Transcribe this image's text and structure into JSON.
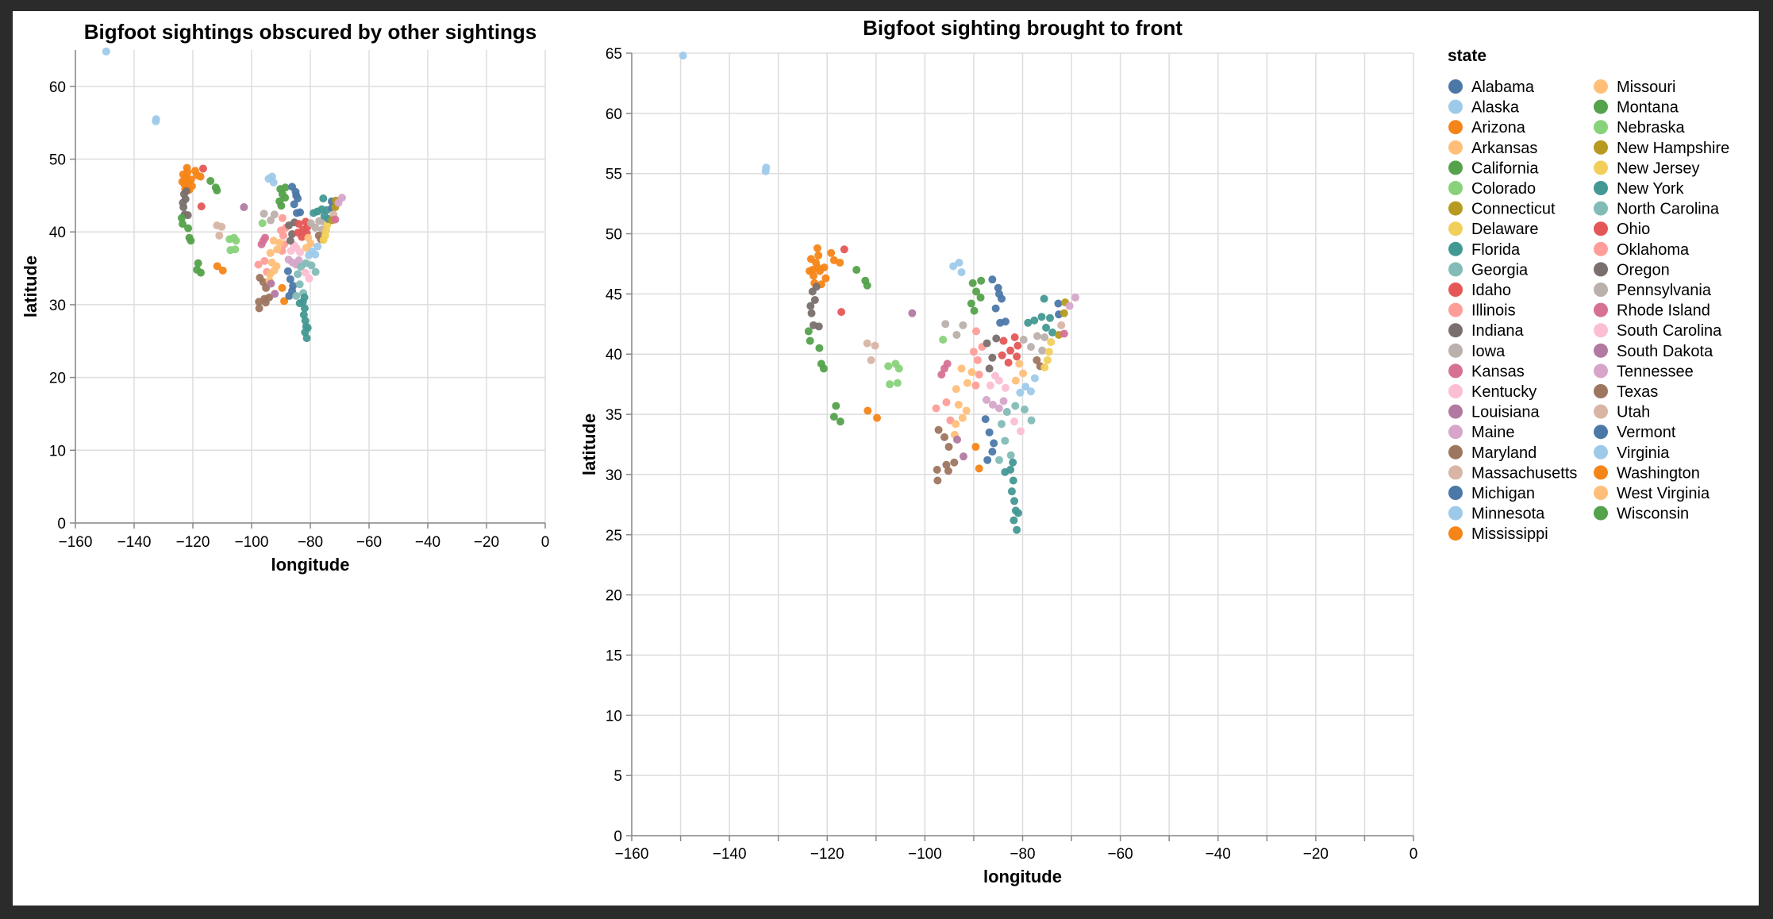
{
  "chart_data": [
    {
      "type": "scatter",
      "title": "Bigfoot sightings obscured by other sightings",
      "xlabel": "longitude",
      "ylabel": "latitude",
      "xlim": [
        -160,
        0
      ],
      "ylim": [
        0,
        65
      ],
      "grid": true,
      "x_ticks": [
        -160,
        -140,
        -120,
        -100,
        -80,
        -60,
        -40,
        -20,
        0
      ],
      "x_tick_labels": [
        "−160",
        "−140",
        "−120",
        "−100",
        "−80",
        "−60",
        "−40",
        "−20",
        "0"
      ],
      "y_ticks": [
        0,
        10,
        20,
        30,
        40,
        50,
        60
      ],
      "y_tick_labels": [
        "0",
        "10",
        "20",
        "30",
        "40",
        "50",
        "60"
      ],
      "legend": "none"
    },
    {
      "type": "scatter",
      "title": "Bigfoot sighting brought to front",
      "xlabel": "longitude",
      "ylabel": "latitude",
      "xlim": [
        -160,
        0
      ],
      "ylim": [
        0,
        65
      ],
      "grid": true,
      "x_ticks": [
        -160,
        -140,
        -120,
        -100,
        -80,
        -60,
        -40,
        -20,
        0
      ],
      "x_tick_labels": [
        "−160",
        "−140",
        "−120",
        "−100",
        "−80",
        "−60",
        "−40",
        "−20",
        "0"
      ],
      "y_ticks": [
        0,
        5,
        10,
        15,
        20,
        25,
        30,
        35,
        40,
        45,
        50,
        55,
        60,
        65
      ],
      "y_tick_labels": [
        "0",
        "5",
        "10",
        "15",
        "20",
        "25",
        "30",
        "35",
        "40",
        "45",
        "50",
        "55",
        "60",
        "65"
      ],
      "legend": "right"
    }
  ],
  "legend": {
    "title": "state",
    "entries": [
      {
        "name": "Alabama",
        "color": "#4c78a8"
      },
      {
        "name": "Alaska",
        "color": "#9ecae9"
      },
      {
        "name": "Arizona",
        "color": "#f58518"
      },
      {
        "name": "Arkansas",
        "color": "#ffbf79"
      },
      {
        "name": "California",
        "color": "#54a24b"
      },
      {
        "name": "Colorado",
        "color": "#88d27a"
      },
      {
        "name": "Connecticut",
        "color": "#b79a20"
      },
      {
        "name": "Delaware",
        "color": "#f2cf5b"
      },
      {
        "name": "Florida",
        "color": "#439894"
      },
      {
        "name": "Georgia",
        "color": "#83bcb6"
      },
      {
        "name": "Idaho",
        "color": "#e45756"
      },
      {
        "name": "Illinois",
        "color": "#ff9d98"
      },
      {
        "name": "Indiana",
        "color": "#79706e"
      },
      {
        "name": "Iowa",
        "color": "#bab0ac"
      },
      {
        "name": "Kansas",
        "color": "#d67195"
      },
      {
        "name": "Kentucky",
        "color": "#fcbfd2"
      },
      {
        "name": "Louisiana",
        "color": "#b279a2"
      },
      {
        "name": "Maine",
        "color": "#d6a5c9"
      },
      {
        "name": "Maryland",
        "color": "#9e765f"
      },
      {
        "name": "Massachusetts",
        "color": "#d8b5a5"
      },
      {
        "name": "Michigan",
        "color": "#4c78a8"
      },
      {
        "name": "Minnesota",
        "color": "#9ecae9"
      },
      {
        "name": "Mississippi",
        "color": "#f58518"
      },
      {
        "name": "Missouri",
        "color": "#ffbf79"
      },
      {
        "name": "Montana",
        "color": "#54a24b"
      },
      {
        "name": "Nebraska",
        "color": "#88d27a"
      },
      {
        "name": "New Hampshire",
        "color": "#b79a20"
      },
      {
        "name": "New Jersey",
        "color": "#f2cf5b"
      },
      {
        "name": "New York",
        "color": "#439894"
      },
      {
        "name": "North Carolina",
        "color": "#83bcb6"
      },
      {
        "name": "Ohio",
        "color": "#e45756"
      },
      {
        "name": "Oklahoma",
        "color": "#ff9d98"
      },
      {
        "name": "Oregon",
        "color": "#79706e"
      },
      {
        "name": "Pennsylvania",
        "color": "#bab0ac"
      },
      {
        "name": "Rhode Island",
        "color": "#d67195"
      },
      {
        "name": "South Carolina",
        "color": "#fcbfd2"
      },
      {
        "name": "South Dakota",
        "color": "#b279a2"
      },
      {
        "name": "Tennessee",
        "color": "#d6a5c9"
      },
      {
        "name": "Texas",
        "color": "#9e765f"
      },
      {
        "name": "Utah",
        "color": "#d8b5a5"
      },
      {
        "name": "Vermont",
        "color": "#4c78a8"
      },
      {
        "name": "Virginia",
        "color": "#9ecae9"
      },
      {
        "name": "Washington",
        "color": "#f58518"
      },
      {
        "name": "West Virginia",
        "color": "#ffbf79"
      },
      {
        "name": "Wisconsin",
        "color": "#54a24b"
      }
    ]
  },
  "points": [
    {
      "state": "Alaska",
      "lon": -149.5,
      "lat": 64.8
    },
    {
      "state": "Alaska",
      "lon": -132.5,
      "lat": 55.5
    },
    {
      "state": "Alaska",
      "lon": -132.6,
      "lat": 55.2
    },
    {
      "state": "Washington",
      "lon": -122.3,
      "lat": 47.6
    },
    {
      "state": "Washington",
      "lon": -123.0,
      "lat": 47.0
    },
    {
      "state": "Washington",
      "lon": -121.8,
      "lat": 48.2
    },
    {
      "state": "Washington",
      "lon": -122.8,
      "lat": 46.5
    },
    {
      "state": "Washington",
      "lon": -121.5,
      "lat": 46.9
    },
    {
      "state": "Washington",
      "lon": -122.0,
      "lat": 48.8
    },
    {
      "state": "Washington",
      "lon": -120.6,
      "lat": 47.2
    },
    {
      "state": "Washington",
      "lon": -123.3,
      "lat": 47.9
    },
    {
      "state": "Washington",
      "lon": -122.6,
      "lat": 45.9
    },
    {
      "state": "Washington",
      "lon": -121.2,
      "lat": 45.8
    },
    {
      "state": "Washington",
      "lon": -119.2,
      "lat": 48.4
    },
    {
      "state": "Washington",
      "lon": -118.6,
      "lat": 47.8
    },
    {
      "state": "Washington",
      "lon": -117.4,
      "lat": 47.6
    },
    {
      "state": "Washington",
      "lon": -120.3,
      "lat": 46.3
    },
    {
      "state": "Washington",
      "lon": -122.0,
      "lat": 47.2
    },
    {
      "state": "Washington",
      "lon": -123.6,
      "lat": 46.9
    },
    {
      "state": "Oregon",
      "lon": -123.0,
      "lat": 45.2
    },
    {
      "state": "Oregon",
      "lon": -122.5,
      "lat": 44.5
    },
    {
      "state": "Oregon",
      "lon": -123.2,
      "lat": 43.4
    },
    {
      "state": "Oregon",
      "lon": -122.8,
      "lat": 42.4
    },
    {
      "state": "Oregon",
      "lon": -121.7,
      "lat": 42.3
    },
    {
      "state": "Oregon",
      "lon": -122.2,
      "lat": 45.6
    },
    {
      "state": "Oregon",
      "lon": -123.4,
      "lat": 44.0
    },
    {
      "state": "Idaho",
      "lon": -116.5,
      "lat": 48.7
    },
    {
      "state": "Idaho",
      "lon": -117.1,
      "lat": 43.5
    },
    {
      "state": "Montana",
      "lon": -114.0,
      "lat": 47.0
    },
    {
      "state": "Montana",
      "lon": -112.2,
      "lat": 46.1
    },
    {
      "state": "Montana",
      "lon": -111.8,
      "lat": 45.7
    },
    {
      "state": "California",
      "lon": -123.8,
      "lat": 41.9
    },
    {
      "state": "California",
      "lon": -123.5,
      "lat": 41.1
    },
    {
      "state": "California",
      "lon": -121.6,
      "lat": 40.5
    },
    {
      "state": "California",
      "lon": -121.2,
      "lat": 39.2
    },
    {
      "state": "California",
      "lon": -120.7,
      "lat": 38.8
    },
    {
      "state": "California",
      "lon": -118.2,
      "lat": 35.7
    },
    {
      "state": "California",
      "lon": -118.6,
      "lat": 34.8
    },
    {
      "state": "California",
      "lon": -117.3,
      "lat": 34.4
    },
    {
      "state": "Utah",
      "lon": -111.8,
      "lat": 40.9
    },
    {
      "state": "Utah",
      "lon": -110.2,
      "lat": 40.7
    },
    {
      "state": "Utah",
      "lon": -111.0,
      "lat": 39.5
    },
    {
      "state": "Colorado",
      "lon": -107.5,
      "lat": 39.0
    },
    {
      "state": "Colorado",
      "lon": -106.0,
      "lat": 39.2
    },
    {
      "state": "Colorado",
      "lon": -105.3,
      "lat": 38.8
    },
    {
      "state": "Colorado",
      "lon": -107.2,
      "lat": 37.5
    },
    {
      "state": "Colorado",
      "lon": -105.6,
      "lat": 37.6
    },
    {
      "state": "South Dakota",
      "lon": -102.6,
      "lat": 43.4
    },
    {
      "state": "Arizona",
      "lon": -111.7,
      "lat": 35.3
    },
    {
      "state": "Arizona",
      "lon": -109.8,
      "lat": 34.7
    },
    {
      "state": "Texas",
      "lon": -97.2,
      "lat": 33.7
    },
    {
      "state": "Texas",
      "lon": -96.0,
      "lat": 33.1
    },
    {
      "state": "Texas",
      "lon": -95.1,
      "lat": 32.3
    },
    {
      "state": "Texas",
      "lon": -97.5,
      "lat": 30.4
    },
    {
      "state": "Texas",
      "lon": -95.6,
      "lat": 30.8
    },
    {
      "state": "Texas",
      "lon": -94.0,
      "lat": 31.0
    },
    {
      "state": "Texas",
      "lon": -97.4,
      "lat": 29.5
    },
    {
      "state": "Texas",
      "lon": -95.2,
      "lat": 30.3
    },
    {
      "state": "Oklahoma",
      "lon": -97.7,
      "lat": 35.5
    },
    {
      "state": "Oklahoma",
      "lon": -95.6,
      "lat": 36.0
    },
    {
      "state": "Oklahoma",
      "lon": -94.8,
      "lat": 34.5
    },
    {
      "state": "Kansas",
      "lon": -96.0,
      "lat": 38.8
    },
    {
      "state": "Kansas",
      "lon": -95.4,
      "lat": 39.2
    },
    {
      "state": "Kansas",
      "lon": -96.6,
      "lat": 38.3
    },
    {
      "state": "Nebraska",
      "lon": -96.3,
      "lat": 41.2
    },
    {
      "state": "Iowa",
      "lon": -95.8,
      "lat": 42.5
    },
    {
      "state": "Iowa",
      "lon": -93.5,
      "lat": 41.6
    },
    {
      "state": "Iowa",
      "lon": -92.2,
      "lat": 42.4
    },
    {
      "state": "Minnesota",
      "lon": -94.2,
      "lat": 47.3
    },
    {
      "state": "Minnesota",
      "lon": -93.0,
      "lat": 47.6
    },
    {
      "state": "Minnesota",
      "lon": -92.5,
      "lat": 46.8
    },
    {
      "state": "Wisconsin",
      "lon": -90.2,
      "lat": 45.9
    },
    {
      "state": "Wisconsin",
      "lon": -89.5,
      "lat": 45.2
    },
    {
      "state": "Wisconsin",
      "lon": -88.6,
      "lat": 44.7
    },
    {
      "state": "Wisconsin",
      "lon": -90.5,
      "lat": 44.2
    },
    {
      "state": "Wisconsin",
      "lon": -89.9,
      "lat": 43.6
    },
    {
      "state": "Wisconsin",
      "lon": -88.5,
      "lat": 46.1
    },
    {
      "state": "Michigan",
      "lon": -86.2,
      "lat": 46.2
    },
    {
      "state": "Michigan",
      "lon": -85.0,
      "lat": 45.5
    },
    {
      "state": "Michigan",
      "lon": -84.3,
      "lat": 44.6
    },
    {
      "state": "Michigan",
      "lon": -85.5,
      "lat": 43.8
    },
    {
      "state": "Michigan",
      "lon": -84.6,
      "lat": 42.6
    },
    {
      "state": "Michigan",
      "lon": -83.5,
      "lat": 42.7
    },
    {
      "state": "Michigan",
      "lon": -84.8,
      "lat": 45.0
    },
    {
      "state": "Illinois",
      "lon": -89.5,
      "lat": 41.9
    },
    {
      "state": "Illinois",
      "lon": -88.3,
      "lat": 40.6
    },
    {
      "state": "Illinois",
      "lon": -89.2,
      "lat": 39.5
    },
    {
      "state": "Illinois",
      "lon": -88.9,
      "lat": 38.3
    },
    {
      "state": "Illinois",
      "lon": -89.6,
      "lat": 37.4
    },
    {
      "state": "Illinois",
      "lon": -90.0,
      "lat": 40.2
    },
    {
      "state": "Missouri",
      "lon": -92.5,
      "lat": 38.8
    },
    {
      "state": "Missouri",
      "lon": -91.3,
      "lat": 37.6
    },
    {
      "state": "Missouri",
      "lon": -93.6,
      "lat": 37.1
    },
    {
      "state": "Missouri",
      "lon": -90.4,
      "lat": 38.5
    },
    {
      "state": "Arkansas",
      "lon": -93.1,
      "lat": 35.8
    },
    {
      "state": "Arkansas",
      "lon": -92.3,
      "lat": 34.7
    },
    {
      "state": "Arkansas",
      "lon": -93.7,
      "lat": 34.2
    },
    {
      "state": "Arkansas",
      "lon": -91.5,
      "lat": 35.3
    },
    {
      "state": "Arkansas",
      "lon": -93.9,
      "lat": 33.3
    },
    {
      "state": "Louisiana",
      "lon": -93.4,
      "lat": 32.9
    },
    {
      "state": "Louisiana",
      "lon": -92.1,
      "lat": 31.5
    },
    {
      "state": "Mississippi",
      "lon": -89.6,
      "lat": 32.3
    },
    {
      "state": "Mississippi",
      "lon": -88.9,
      "lat": 30.5
    },
    {
      "state": "Alabama",
      "lon": -87.6,
      "lat": 34.6
    },
    {
      "state": "Alabama",
      "lon": -86.8,
      "lat": 33.5
    },
    {
      "state": "Alabama",
      "lon": -85.9,
      "lat": 32.6
    },
    {
      "state": "Alabama",
      "lon": -87.2,
      "lat": 31.2
    },
    {
      "state": "Alabama",
      "lon": -86.2,
      "lat": 31.9
    },
    {
      "state": "Tennessee",
      "lon": -87.4,
      "lat": 36.2
    },
    {
      "state": "Tennessee",
      "lon": -86.1,
      "lat": 35.8
    },
    {
      "state": "Tennessee",
      "lon": -84.8,
      "lat": 35.5
    },
    {
      "state": "Tennessee",
      "lon": -83.9,
      "lat": 36.1
    },
    {
      "state": "Kentucky",
      "lon": -86.6,
      "lat": 37.4
    },
    {
      "state": "Kentucky",
      "lon": -84.8,
      "lat": 37.8
    },
    {
      "state": "Kentucky",
      "lon": -83.5,
      "lat": 37.2
    },
    {
      "state": "Kentucky",
      "lon": -85.6,
      "lat": 38.2
    },
    {
      "state": "Indiana",
      "lon": -87.3,
      "lat": 40.9
    },
    {
      "state": "Indiana",
      "lon": -86.2,
      "lat": 39.7
    },
    {
      "state": "Indiana",
      "lon": -85.4,
      "lat": 41.3
    },
    {
      "state": "Indiana",
      "lon": -86.8,
      "lat": 38.8
    },
    {
      "state": "Ohio",
      "lon": -83.9,
      "lat": 41.1
    },
    {
      "state": "Ohio",
      "lon": -82.5,
      "lat": 40.3
    },
    {
      "state": "Ohio",
      "lon": -81.6,
      "lat": 41.4
    },
    {
      "state": "Ohio",
      "lon": -81.2,
      "lat": 39.8
    },
    {
      "state": "Ohio",
      "lon": -82.9,
      "lat": 39.3
    },
    {
      "state": "Ohio",
      "lon": -84.2,
      "lat": 39.9
    },
    {
      "state": "Ohio",
      "lon": -81.0,
      "lat": 40.7
    },
    {
      "state": "West Virginia",
      "lon": -80.7,
      "lat": 39.2
    },
    {
      "state": "West Virginia",
      "lon": -79.9,
      "lat": 38.4
    },
    {
      "state": "West Virginia",
      "lon": -81.4,
      "lat": 37.8
    },
    {
      "state": "Pennsylvania",
      "lon": -79.8,
      "lat": 41.2
    },
    {
      "state": "Pennsylvania",
      "lon": -78.3,
      "lat": 40.6
    },
    {
      "state": "Pennsylvania",
      "lon": -77.0,
      "lat": 41.5
    },
    {
      "state": "Pennsylvania",
      "lon": -76.0,
      "lat": 40.3
    },
    {
      "state": "Pennsylvania",
      "lon": -75.5,
      "lat": 41.4
    },
    {
      "state": "Virginia",
      "lon": -79.4,
      "lat": 37.3
    },
    {
      "state": "Virginia",
      "lon": -77.5,
      "lat": 38.0
    },
    {
      "state": "Virginia",
      "lon": -78.3,
      "lat": 36.9
    },
    {
      "state": "Virginia",
      "lon": -80.5,
      "lat": 36.8
    },
    {
      "state": "North Carolina",
      "lon": -81.5,
      "lat": 35.7
    },
    {
      "state": "North Carolina",
      "lon": -79.6,
      "lat": 35.4
    },
    {
      "state": "North Carolina",
      "lon": -78.2,
      "lat": 34.5
    },
    {
      "state": "North Carolina",
      "lon": -83.2,
      "lat": 35.2
    },
    {
      "state": "South Carolina",
      "lon": -81.7,
      "lat": 34.4
    },
    {
      "state": "South Carolina",
      "lon": -80.4,
      "lat": 33.6
    },
    {
      "state": "Georgia",
      "lon": -84.3,
      "lat": 34.2
    },
    {
      "state": "Georgia",
      "lon": -83.6,
      "lat": 32.8
    },
    {
      "state": "Georgia",
      "lon": -82.4,
      "lat": 31.6
    },
    {
      "state": "Georgia",
      "lon": -84.8,
      "lat": 31.2
    },
    {
      "state": "Florida",
      "lon": -82.5,
      "lat": 30.4
    },
    {
      "state": "Florida",
      "lon": -81.9,
      "lat": 29.5
    },
    {
      "state": "Florida",
      "lon": -82.2,
      "lat": 28.6
    },
    {
      "state": "Florida",
      "lon": -81.7,
      "lat": 27.8
    },
    {
      "state": "Florida",
      "lon": -81.4,
      "lat": 27.0
    },
    {
      "state": "Florida",
      "lon": -81.8,
      "lat": 26.2
    },
    {
      "state": "Florida",
      "lon": -81.2,
      "lat": 25.4
    },
    {
      "state": "Florida",
      "lon": -83.6,
      "lat": 30.2
    },
    {
      "state": "Florida",
      "lon": -80.9,
      "lat": 26.8
    },
    {
      "state": "Florida",
      "lon": -82.0,
      "lat": 31.0
    },
    {
      "state": "Maryland",
      "lon": -77.1,
      "lat": 39.5
    },
    {
      "state": "Maryland",
      "lon": -76.4,
      "lat": 39.0
    },
    {
      "state": "Delaware",
      "lon": -75.5,
      "lat": 38.9
    },
    {
      "state": "New Jersey",
      "lon": -74.6,
      "lat": 40.2
    },
    {
      "state": "New Jersey",
      "lon": -74.2,
      "lat": 41.0
    },
    {
      "state": "New Jersey",
      "lon": -74.9,
      "lat": 39.5
    },
    {
      "state": "New York",
      "lon": -76.1,
      "lat": 43.1
    },
    {
      "state": "New York",
      "lon": -77.6,
      "lat": 42.8
    },
    {
      "state": "New York",
      "lon": -74.4,
      "lat": 43.0
    },
    {
      "state": "New York",
      "lon": -75.2,
      "lat": 42.2
    },
    {
      "state": "New York",
      "lon": -73.9,
      "lat": 41.8
    },
    {
      "state": "New York",
      "lon": -78.9,
      "lat": 42.6
    },
    {
      "state": "New York",
      "lon": -75.6,
      "lat": 44.6
    },
    {
      "state": "Vermont",
      "lon": -72.7,
      "lat": 44.2
    },
    {
      "state": "Vermont",
      "lon": -72.6,
      "lat": 43.3
    },
    {
      "state": "New Hampshire",
      "lon": -71.5,
      "lat": 43.4
    },
    {
      "state": "New Hampshire",
      "lon": -71.3,
      "lat": 44.3
    },
    {
      "state": "Massachusetts",
      "lon": -72.1,
      "lat": 42.4
    },
    {
      "state": "Connecticut",
      "lon": -72.6,
      "lat": 41.6
    },
    {
      "state": "Rhode Island",
      "lon": -71.5,
      "lat": 41.7
    },
    {
      "state": "Maine",
      "lon": -69.2,
      "lat": 44.7
    },
    {
      "state": "Maine",
      "lon": -70.4,
      "lat": 44.0
    }
  ]
}
